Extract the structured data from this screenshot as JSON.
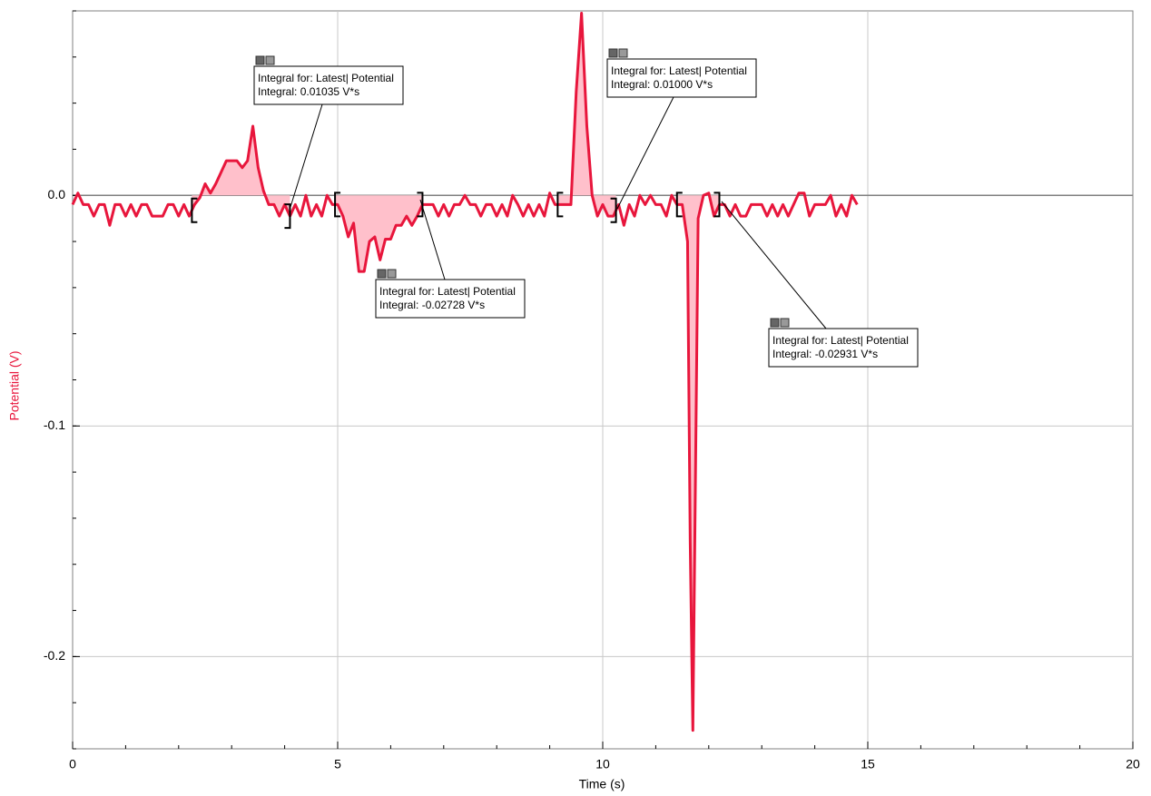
{
  "chart_data": {
    "type": "line",
    "x_label": "Time (s)",
    "y_label": "Potential (V)",
    "xlim": [
      0,
      20
    ],
    "xticks": [
      0,
      5,
      10,
      15,
      20
    ],
    "ylim": [
      -0.24,
      0.08
    ],
    "yticks": [
      {
        "value": 0,
        "label": "0.0"
      },
      {
        "value": -0.1,
        "label": "-0.1"
      },
      {
        "value": -0.2,
        "label": "-0.2"
      }
    ],
    "grid": true,
    "x": [
      0,
      0.1,
      0.2,
      0.3,
      0.4,
      0.5,
      0.6,
      0.7,
      0.8,
      0.9,
      1.0,
      1.1,
      1.2,
      1.3,
      1.4,
      1.5,
      1.6,
      1.7,
      1.8,
      1.9,
      2.0,
      2.1,
      2.2,
      2.3,
      2.4,
      2.5,
      2.6,
      2.7,
      2.8,
      2.9,
      3.0,
      3.1,
      3.2,
      3.3,
      3.4,
      3.5,
      3.6,
      3.7,
      3.8,
      3.9,
      4.0,
      4.1,
      4.2,
      4.3,
      4.4,
      4.5,
      4.6,
      4.7,
      4.8,
      4.9,
      5.0,
      5.1,
      5.2,
      5.3,
      5.4,
      5.5,
      5.6,
      5.7,
      5.8,
      5.9,
      6.0,
      6.1,
      6.2,
      6.3,
      6.4,
      6.5,
      6.6,
      6.7,
      6.8,
      6.9,
      7.0,
      7.1,
      7.2,
      7.3,
      7.4,
      7.5,
      7.6,
      7.7,
      7.8,
      7.9,
      8.0,
      8.1,
      8.2,
      8.3,
      8.4,
      8.5,
      8.6,
      8.7,
      8.8,
      8.9,
      9.0,
      9.1,
      9.2,
      9.3,
      9.4,
      9.5,
      9.6,
      9.7,
      9.8,
      9.9,
      10.0,
      10.1,
      10.2,
      10.3,
      10.4,
      10.5,
      10.6,
      10.7,
      10.8,
      10.9,
      11.0,
      11.1,
      11.2,
      11.3,
      11.4,
      11.5,
      11.6,
      11.65,
      11.7,
      11.75,
      11.8,
      11.9,
      12.0,
      12.1,
      12.2,
      12.3,
      12.4,
      12.5,
      12.6,
      12.7,
      12.8,
      12.9,
      13.0,
      13.1,
      13.2,
      13.3,
      13.4,
      13.5,
      13.6,
      13.7,
      13.8,
      13.9,
      14.0,
      14.1,
      14.2,
      14.3,
      14.4,
      14.5,
      14.6,
      14.7,
      14.8
    ],
    "series": [
      {
        "name": "Potential",
        "color": "#e8163c",
        "values": [
          -0.004,
          0.001,
          -0.004,
          -0.004,
          -0.009,
          -0.004,
          -0.004,
          -0.013,
          -0.004,
          -0.004,
          -0.009,
          -0.004,
          -0.009,
          -0.004,
          -0.004,
          -0.009,
          -0.009,
          -0.009,
          -0.004,
          -0.004,
          -0.009,
          -0.004,
          -0.009,
          -0.004,
          -0.001,
          0.005,
          0.001,
          0.005,
          0.01,
          0.015,
          0.015,
          0.015,
          0.012,
          0.015,
          0.03,
          0.012,
          0.002,
          -0.004,
          -0.004,
          -0.009,
          -0.004,
          -0.009,
          -0.004,
          -0.009,
          0.0,
          -0.009,
          -0.004,
          -0.009,
          0.0,
          -0.004,
          -0.004,
          -0.009,
          -0.018,
          -0.012,
          -0.033,
          -0.033,
          -0.02,
          -0.018,
          -0.028,
          -0.019,
          -0.019,
          -0.013,
          -0.013,
          -0.009,
          -0.013,
          -0.009,
          -0.004,
          -0.004,
          -0.004,
          -0.009,
          -0.004,
          -0.009,
          -0.004,
          -0.004,
          0.0,
          -0.004,
          -0.004,
          -0.009,
          -0.004,
          -0.004,
          -0.009,
          -0.004,
          -0.009,
          0.0,
          -0.004,
          -0.009,
          -0.004,
          -0.009,
          -0.004,
          -0.009,
          0.001,
          -0.004,
          -0.004,
          -0.004,
          -0.004,
          0.045,
          0.079,
          0.03,
          0.0,
          -0.009,
          -0.004,
          -0.009,
          -0.009,
          -0.004,
          -0.013,
          -0.004,
          -0.009,
          0.0,
          -0.004,
          0.0,
          -0.004,
          -0.004,
          -0.009,
          0.0,
          -0.004,
          -0.004,
          -0.02,
          -0.15,
          -0.232,
          -0.12,
          -0.01,
          0.0,
          0.001,
          -0.009,
          -0.004,
          -0.004,
          -0.009,
          -0.004,
          -0.009,
          -0.009,
          -0.004,
          -0.004,
          -0.004,
          -0.009,
          -0.004,
          -0.009,
          -0.004,
          -0.009,
          -0.004,
          0.001,
          0.001,
          -0.009,
          -0.004,
          -0.004,
          -0.004,
          0.0,
          -0.009,
          -0.004,
          -0.009,
          0.0,
          -0.004
        ]
      }
    ],
    "integrals": [
      {
        "range": [
          2.25,
          4.1
        ],
        "label": "Integral for: Latest| Potential",
        "result": "Integral: 0.01035 V*s"
      },
      {
        "range": [
          4.95,
          6.6
        ],
        "label": "Integral for: Latest| Potential",
        "result": "Integral: -0.02728 V*s"
      },
      {
        "range": [
          9.15,
          10.25
        ],
        "label": "Integral for: Latest| Potential",
        "result": "Integral: 0.01000 V*s"
      },
      {
        "range": [
          11.4,
          12.2
        ],
        "label": "Integral for: Latest| Potential",
        "result": "Integral: -0.02931 V*s"
      }
    ]
  }
}
